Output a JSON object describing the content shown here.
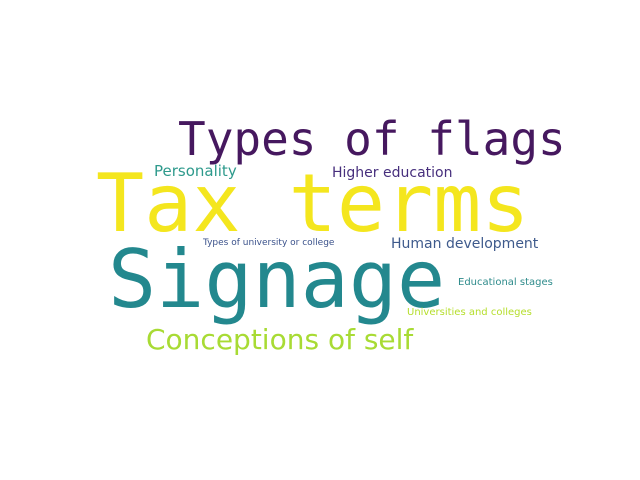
{
  "wordcloud": {
    "words": {
      "types_of_flags": {
        "text": "Types of flags",
        "color": "#46185f"
      },
      "personality": {
        "text": "Personality",
        "color": "#2e9a8c"
      },
      "higher_education": {
        "text": "Higher education",
        "color": "#472f7d"
      },
      "tax_terms": {
        "text": "Tax terms",
        "color": "#f4e61e"
      },
      "types_of_university_or_college": {
        "text": "Types of university or college",
        "color": "#3b528b"
      },
      "human_development": {
        "text": "Human development",
        "color": "#3e5a8c"
      },
      "signage": {
        "text": "Signage",
        "color": "#23888e"
      },
      "educational_stages": {
        "text": "Educational stages",
        "color": "#2e8b8b"
      },
      "universities_and_colleges": {
        "text": "Universities and colleges",
        "color": "#b5de2b"
      },
      "conceptions_of_self": {
        "text": "Conceptions of self",
        "color": "#a8db34"
      }
    }
  }
}
